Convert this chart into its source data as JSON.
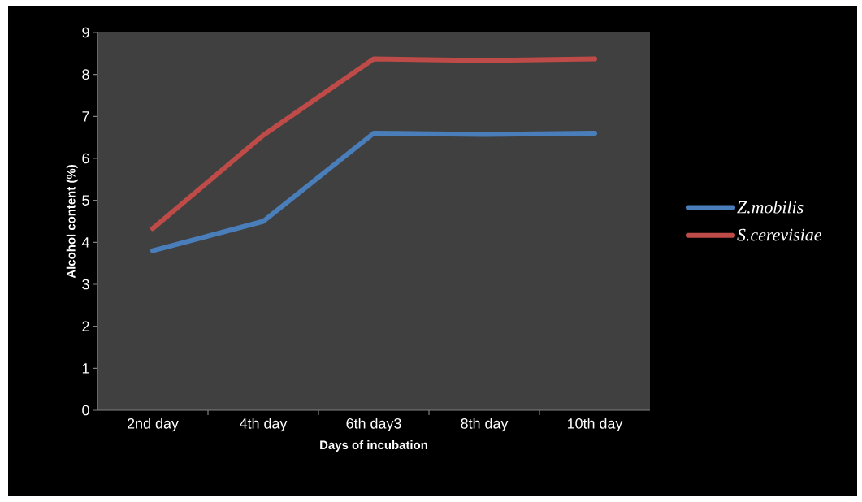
{
  "chart_data": {
    "type": "line",
    "xlabel": "Days of incubation",
    "ylabel": "Alcohol content (%)",
    "categories": [
      "2nd day",
      "4th day",
      "6th day3",
      "8th day",
      "10th day"
    ],
    "series": [
      {
        "name": "Z.mobilis",
        "color": "#4a7ebb",
        "values": [
          3.8,
          4.5,
          6.6,
          6.57,
          6.6
        ]
      },
      {
        "name": "S.cerevisiae",
        "color": "#be4b48",
        "values": [
          4.33,
          6.55,
          8.37,
          8.33,
          8.37
        ]
      }
    ],
    "ylim": [
      0,
      9
    ],
    "yticks": [
      0,
      1,
      2,
      3,
      4,
      5,
      6,
      7,
      8,
      9
    ],
    "legend": "right",
    "grid": false,
    "marker": "none",
    "line_style": "solid"
  }
}
